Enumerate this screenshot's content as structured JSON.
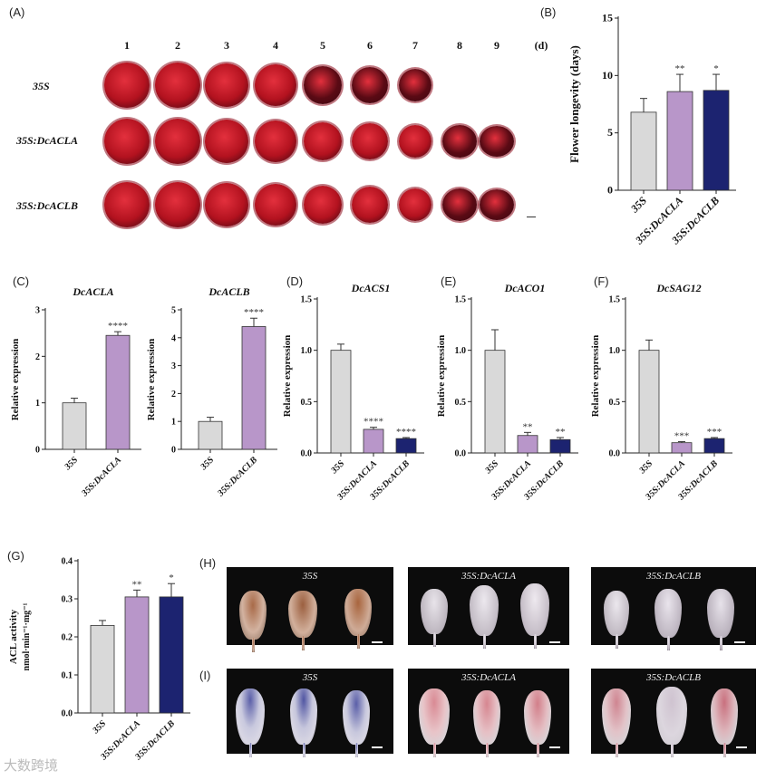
{
  "panel_labels": {
    "A": "(A)",
    "B": "(B)",
    "C": "(C)",
    "D": "(D)",
    "E": "(E)",
    "F": "(F)",
    "G": "(G)",
    "H": "(H)",
    "I": "(I)"
  },
  "panel_a": {
    "columns": [
      "1",
      "2",
      "3",
      "4",
      "5",
      "6",
      "7",
      "8",
      "9",
      "(d)"
    ],
    "rows": [
      {
        "label": "35S",
        "count": 7
      },
      {
        "label": "35S:DcACLA",
        "count": 9
      },
      {
        "label": "35S:DcACLB",
        "count": 9
      }
    ]
  },
  "colors": {
    "gray": "#d9d9d9",
    "purple": "#b896c9",
    "navy": "#1c2370",
    "flower_red": "#b3121f",
    "flower_dark": "#5a0a14"
  },
  "chart_data": [
    {
      "id": "B",
      "type": "bar",
      "title": "",
      "xlabel": "",
      "ylabel": "Flower longevity (days)",
      "categories": [
        "35S",
        "35S:DcACLA",
        "35S:DcACLB"
      ],
      "values": [
        6.8,
        8.6,
        8.7
      ],
      "errors": [
        1.2,
        1.5,
        1.4
      ],
      "significance": [
        "",
        "**",
        "*"
      ],
      "ylim": [
        0,
        15
      ],
      "yticks": [
        "0",
        "5",
        "10",
        "15"
      ]
    },
    {
      "id": "C1",
      "type": "bar",
      "title": "DcACLA",
      "xlabel": "",
      "ylabel": "Relative expression",
      "categories": [
        "35S",
        "35S:DcACLA"
      ],
      "values": [
        1.0,
        2.45
      ],
      "errors": [
        0.1,
        0.08
      ],
      "significance": [
        "",
        "****"
      ],
      "ylim": [
        0,
        3
      ],
      "yticks": [
        "0",
        "1",
        "2",
        "3"
      ]
    },
    {
      "id": "C2",
      "type": "bar",
      "title": "DcACLB",
      "xlabel": "",
      "ylabel": "Relative expression",
      "categories": [
        "35S",
        "35S:DcACLB"
      ],
      "values": [
        1.0,
        4.4
      ],
      "errors": [
        0.15,
        0.3
      ],
      "significance": [
        "",
        "****"
      ],
      "ylim": [
        0,
        5
      ],
      "yticks": [
        "0",
        "1",
        "2",
        "3",
        "4",
        "5"
      ]
    },
    {
      "id": "D",
      "type": "bar",
      "title": "DcACS1",
      "xlabel": "",
      "ylabel": "Relative expression",
      "categories": [
        "35S",
        "35S:DcACLA",
        "35S:DcACLB"
      ],
      "values": [
        1.0,
        0.23,
        0.14
      ],
      "errors": [
        0.06,
        0.02,
        0.01
      ],
      "significance": [
        "",
        "****",
        "****"
      ],
      "ylim": [
        0,
        1.5
      ],
      "yticks": [
        "0.0",
        "0.5",
        "1.0",
        "1.5"
      ]
    },
    {
      "id": "E",
      "type": "bar",
      "title": "DcACO1",
      "xlabel": "",
      "ylabel": "Relative expression",
      "categories": [
        "35S",
        "35S:DcACLA",
        "35S:DcACLB"
      ],
      "values": [
        1.0,
        0.17,
        0.13
      ],
      "errors": [
        0.2,
        0.03,
        0.02
      ],
      "significance": [
        "",
        "**",
        "**"
      ],
      "ylim": [
        0,
        1.5
      ],
      "yticks": [
        "0.0",
        "0.5",
        "1.0",
        "1.5"
      ]
    },
    {
      "id": "F",
      "type": "bar",
      "title": "DcSAG12",
      "xlabel": "",
      "ylabel": "Relative expression",
      "categories": [
        "35S",
        "35S:DcACLA",
        "35S:DcACLB"
      ],
      "values": [
        1.0,
        0.1,
        0.14
      ],
      "errors": [
        0.1,
        0.01,
        0.01
      ],
      "significance": [
        "",
        "***",
        "***"
      ],
      "ylim": [
        0,
        1.5
      ],
      "yticks": [
        "0.0",
        "0.5",
        "1.0",
        "1.5"
      ]
    },
    {
      "id": "G",
      "type": "bar",
      "title": "",
      "xlabel": "",
      "ylabel": "ACL activity",
      "ylabel2": "nmol·min⁻¹·mg⁻¹",
      "categories": [
        "35S",
        "35S:DcACLA",
        "35S:DcACLB"
      ],
      "values": [
        0.23,
        0.305,
        0.305
      ],
      "errors": [
        0.013,
        0.018,
        0.035
      ],
      "significance": [
        "",
        "**",
        "*"
      ],
      "ylim": [
        0,
        0.4
      ],
      "yticks": [
        "0.0",
        "0.1",
        "0.2",
        "0.3",
        "0.4"
      ]
    }
  ],
  "panel_h": {
    "titles": [
      "35S",
      "35S:DcACLA",
      "35S:DcACLB"
    ]
  },
  "panel_i": {
    "titles": [
      "35S",
      "35S:DcACLA",
      "35S:DcACLB"
    ]
  },
  "watermark": "大数跨境"
}
